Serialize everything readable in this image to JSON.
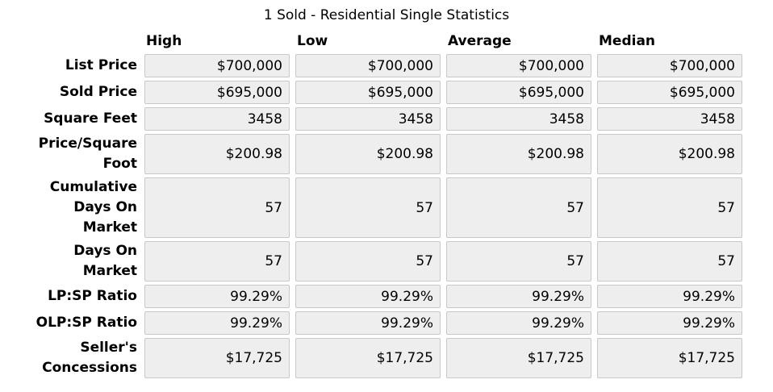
{
  "title": "1 Sold - Residential Single Statistics",
  "colors": {
    "cell_background": "#eeeeee",
    "cell_border": "#c8c8c8",
    "text": "#000000"
  },
  "chart_data": {
    "type": "table",
    "title": "1 Sold - Residential Single Statistics",
    "columns": [
      "High",
      "Low",
      "Average",
      "Median"
    ],
    "rows": [
      {
        "label": "List Price",
        "values": [
          "$700,000",
          "$700,000",
          "$700,000",
          "$700,000"
        ]
      },
      {
        "label": "Sold Price",
        "values": [
          "$695,000",
          "$695,000",
          "$695,000",
          "$695,000"
        ]
      },
      {
        "label": "Square Feet",
        "values": [
          "3458",
          "3458",
          "3458",
          "3458"
        ]
      },
      {
        "label": "Price/Square\nFoot",
        "values": [
          "$200.98",
          "$200.98",
          "$200.98",
          "$200.98"
        ]
      },
      {
        "label": "Cumulative\nDays On\nMarket",
        "values": [
          "57",
          "57",
          "57",
          "57"
        ]
      },
      {
        "label": "Days On\nMarket",
        "values": [
          "57",
          "57",
          "57",
          "57"
        ]
      },
      {
        "label": "LP:SP Ratio",
        "values": [
          "99.29%",
          "99.29%",
          "99.29%",
          "99.29%"
        ]
      },
      {
        "label": "OLP:SP Ratio",
        "values": [
          "99.29%",
          "99.29%",
          "99.29%",
          "99.29%"
        ]
      },
      {
        "label": "Seller's\nConcessions",
        "values": [
          "$17,725",
          "$17,725",
          "$17,725",
          "$17,725"
        ]
      }
    ]
  }
}
